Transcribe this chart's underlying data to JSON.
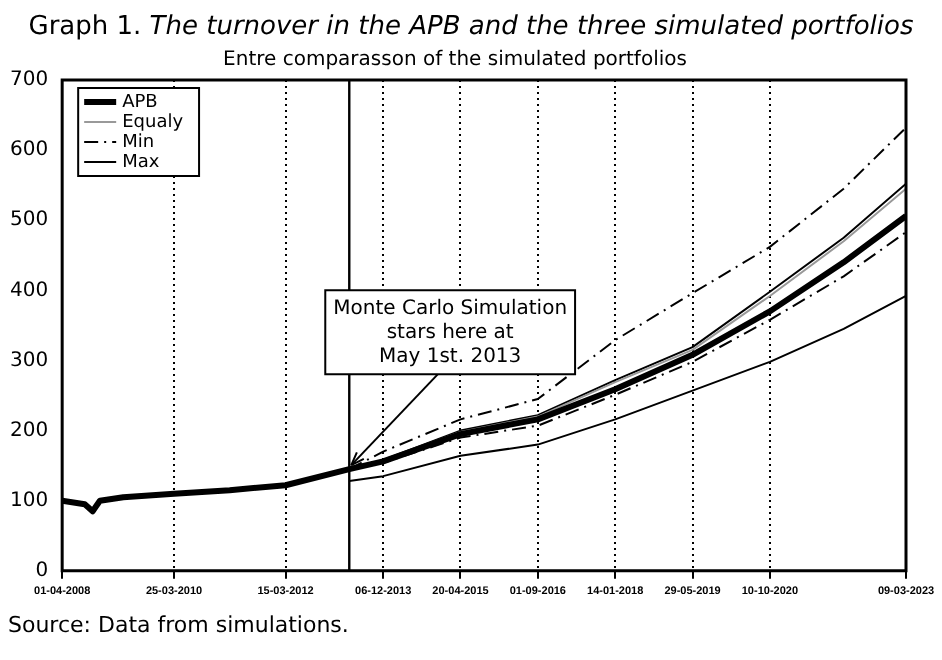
{
  "chart_data": {
    "type": "line",
    "title": "Graph 1. The turnover in the APB and the three simulated portfolios",
    "subtitle": "Entre comparasson of the simulated portfolios",
    "xlim": [
      "2008-04-01",
      "2023-03-09"
    ],
    "xticks": [
      {
        "value": "2008-04-01",
        "label": "01-04-2008"
      },
      {
        "value": "2010-03-25",
        "label": "25-03-2010"
      },
      {
        "value": "2012-03-15",
        "label": "15-03-2012"
      },
      {
        "value": "2013-12-06",
        "label": "06-12-2013"
      },
      {
        "value": "2015-04-20",
        "label": "20-04-2015"
      },
      {
        "value": "2016-09-01",
        "label": "01-09-2016"
      },
      {
        "value": "2018-01-14",
        "label": "14-01-2018"
      },
      {
        "value": "2019-05-29",
        "label": "29-05-2019"
      },
      {
        "value": "2020-10-10",
        "label": "10-10-2020"
      },
      {
        "value": "2023-03-09",
        "label": "09-03-2023"
      }
    ],
    "ylim": [
      0,
      700
    ],
    "yticks": [
      0,
      100,
      200,
      300,
      400,
      500,
      600,
      700
    ],
    "grid": "x",
    "legend": "top left",
    "marker": "none",
    "series": [
      {
        "name": "APB",
        "color": "#000000",
        "x": [
          "2008-04-01",
          "2008-08-25",
          "2008-10-15",
          "2008-12-01",
          "2009-05-01",
          "2010-03-25",
          "2011-03-20",
          "2012-03-15",
          "2013-05-01",
          "2013-12-06",
          "2015-04-20",
          "2016-09-01",
          "2018-01-14",
          "2019-05-29",
          "2020-10-10",
          "2022-01-30",
          "2023-03-09"
        ],
        "values": [
          100,
          95,
          85,
          100,
          105,
          110,
          115,
          122,
          145,
          156,
          195,
          216,
          259,
          308,
          370,
          440,
          506
        ]
      },
      {
        "name": "Equaly",
        "color": "#999999",
        "x": [
          "2013-05-01",
          "2013-12-06",
          "2015-04-20",
          "2016-09-01",
          "2018-01-14",
          "2019-05-29",
          "2020-10-10",
          "2022-01-30",
          "2023-03-09"
        ],
        "values": [
          145,
          157,
          198,
          220,
          269,
          315,
          392,
          470,
          545
        ]
      },
      {
        "name": "Min",
        "color": "#000000",
        "line_style": "dashed",
        "x": [
          "2013-05-01",
          "2013-12-06",
          "2015-04-20",
          "2016-09-01",
          "2018-01-14",
          "2019-05-29",
          "2020-10-10",
          "2022-01-30",
          "2023-03-09"
        ],
        "values": [
          145,
          170,
          216,
          245,
          329,
          396,
          462,
          545,
          632
        ]
      },
      {
        "name": "Max",
        "color": "#000000",
        "x": [
          "2013-05-01",
          "2013-12-06",
          "2015-04-20",
          "2016-09-01",
          "2018-01-14",
          "2019-05-29",
          "2020-10-10",
          "2022-01-30",
          "2023-03-09"
        ],
        "values": [
          145,
          158,
          200,
          222,
          272,
          319,
          398,
          475,
          552
        ]
      },
      {
        "color": "#000000",
        "line_style": "dashed",
        "x": [
          "2013-05-01",
          "2013-12-06",
          "2015-04-20",
          "2016-09-01",
          "2018-01-14",
          "2019-05-29",
          "2020-10-10",
          "2022-01-30",
          "2023-03-09"
        ],
        "values": [
          145,
          154,
          190,
          207,
          251,
          298,
          358,
          420,
          483
        ]
      },
      {
        "color": "#000000",
        "x": [
          "2013-05-01",
          "2013-12-06",
          "2015-04-20",
          "2016-09-01",
          "2018-01-14",
          "2019-05-29",
          "2020-10-10",
          "2022-01-30",
          "2023-03-09"
        ],
        "values": [
          128,
          135,
          164,
          180,
          216,
          257,
          298,
          345,
          392
        ]
      }
    ],
    "ref_lines": [
      {
        "axis": "x",
        "value": "2013-05-01",
        "color": "#000000"
      }
    ],
    "annotations": [
      {
        "text": "Monte Carlo Simulation\nstars here at\nMay 1st. 2013",
        "x": "2013-05-01",
        "y": 145
      },
      "Source: Data from simulations."
    ]
  }
}
